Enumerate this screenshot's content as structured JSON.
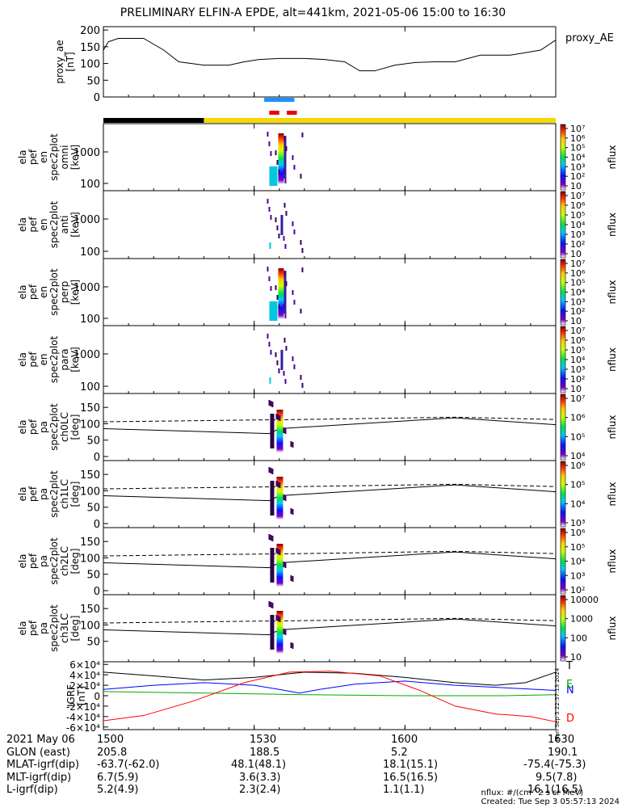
{
  "title": "PRELIMINARY ELFIN-A EPDE, alt=441km, 2021-05-06 15:00 to 16:30",
  "side_label": "Mon Sep  3 22:37:13 2024",
  "chart_data": {
    "type": "line",
    "time_axis": {
      "start_min": 0,
      "end_min": 90,
      "tick_labels": [
        "1500",
        "1530",
        "1600",
        "1630"
      ]
    },
    "panels": [
      {
        "id": "proxy_ae",
        "ylabel": [
          "proxy_ae",
          "[nT]"
        ],
        "legend": "proxy_AE",
        "ylim": [
          0,
          210
        ],
        "yticks": [
          "0",
          "50",
          "100",
          "150",
          "200"
        ],
        "ytick_values": [
          0,
          50,
          100,
          150,
          200
        ],
        "series": [
          {
            "name": "proxy_AE",
            "x": [
              0,
              1,
              3,
              8,
              12,
              15,
              20,
              25,
              28,
              31,
              35,
              40,
              44,
              48,
              51,
              54,
              58,
              62,
              66,
              70,
              75,
              81,
              87,
              90
            ],
            "y": [
              140,
              165,
              175,
              175,
              140,
              105,
              95,
              95,
              105,
              112,
              115,
              115,
              112,
              105,
              78,
              78,
              95,
              103,
              105,
              105,
              125,
              125,
              140,
              170
            ]
          }
        ]
      },
      {
        "id": "spec_omni",
        "ylabel": [
          "ela",
          "pef",
          "en",
          "spec2plot",
          "omni",
          "[keV]"
        ],
        "ytick_labels": [
          "100",
          "1000"
        ],
        "colorbar_label": "nflux",
        "colorbar_ticks": [
          "10",
          "10²",
          "10³",
          "10⁴",
          "10⁵",
          "10⁶",
          "10⁷"
        ]
      },
      {
        "id": "spec_anti",
        "ylabel": [
          "ela",
          "pef",
          "en",
          "spec2plot",
          "anti",
          "[keV]"
        ],
        "ytick_labels": [
          "100",
          "1000"
        ],
        "colorbar_label": "nflux",
        "colorbar_ticks": [
          "10",
          "10²",
          "10³",
          "10⁴",
          "10⁵",
          "10⁶",
          "10⁷"
        ]
      },
      {
        "id": "spec_perp",
        "ylabel": [
          "ela",
          "pef",
          "en",
          "spec2plot",
          "perp",
          "[keV]"
        ],
        "ytick_labels": [
          "100",
          "1000"
        ],
        "colorbar_label": "nflux",
        "colorbar_ticks": [
          "10",
          "10²",
          "10³",
          "10⁴",
          "10⁵",
          "10⁶",
          "10⁷"
        ]
      },
      {
        "id": "spec_para",
        "ylabel": [
          "ela",
          "pef",
          "en",
          "spec2plot",
          "para",
          "[keV]"
        ],
        "ytick_labels": [
          "100",
          "1000"
        ],
        "colorbar_label": "nflux",
        "colorbar_ticks": [
          "10",
          "10²",
          "10³",
          "10⁴",
          "10⁵",
          "10⁶",
          "10⁷"
        ]
      },
      {
        "id": "pa_ch0",
        "ylabel": [
          "ela",
          "pef",
          "pa",
          "spec2plot",
          "ch0LC",
          "[deg]"
        ],
        "ytick_labels": [
          "0",
          "50",
          "100",
          "150"
        ],
        "colorbar_label": "nflux",
        "colorbar_ticks": [
          "10⁴",
          "10⁵",
          "10⁶",
          "10⁷"
        ]
      },
      {
        "id": "pa_ch1",
        "ylabel": [
          "ela",
          "pef",
          "pa",
          "spec2plot",
          "ch1LC",
          "[deg]"
        ],
        "ytick_labels": [
          "0",
          "50",
          "100",
          "150"
        ],
        "colorbar_label": "nflux",
        "colorbar_ticks": [
          "10³",
          "10⁴",
          "10⁵",
          "10⁶"
        ]
      },
      {
        "id": "pa_ch2",
        "ylabel": [
          "ela",
          "pef",
          "pa",
          "spec2plot",
          "ch2LC",
          "[deg]"
        ],
        "ytick_labels": [
          "0",
          "50",
          "100",
          "150"
        ],
        "colorbar_label": "nflux",
        "colorbar_ticks": [
          "10²",
          "10³",
          "10⁴",
          "10⁵",
          "10⁶"
        ]
      },
      {
        "id": "pa_ch3",
        "ylabel": [
          "ela",
          "pef",
          "pa",
          "spec2plot",
          "ch3LC",
          "[deg]"
        ],
        "ytick_labels": [
          "50",
          "100",
          "150"
        ],
        "colorbar_label": "nflux",
        "colorbar_ticks": [
          "10",
          "100",
          "1000",
          "10000"
        ]
      },
      {
        "id": "igrf",
        "ylabel": [
          "IGRF",
          "[nT]"
        ],
        "ytick_labels": [
          "-6×10⁴",
          "-4×10⁴",
          "-2×10⁴",
          "0",
          "2×10⁴",
          "4×10⁴",
          "6×10⁴"
        ],
        "ytick_values": [
          -60000,
          -40000,
          -20000,
          0,
          20000,
          40000,
          60000
        ],
        "legend": [
          "T",
          "E",
          "N",
          "D"
        ],
        "series": [
          {
            "name": "T",
            "color": "#000000",
            "x": [
              0,
              10,
              20,
              30,
              40,
              50,
              60,
              70,
              78,
              84,
              90
            ],
            "y": [
              45000,
              38000,
              30000,
              35000,
              45000,
              43000,
              35000,
              25000,
              20000,
              25000,
              45000
            ]
          },
          {
            "name": "N",
            "color": "#0000ff",
            "x": [
              0,
              10,
              20,
              30,
              35,
              39,
              43,
              50,
              60,
              70,
              80,
              90
            ],
            "y": [
              12000,
              20000,
              25000,
              20000,
              12000,
              5000,
              12000,
              22000,
              28000,
              20000,
              15000,
              10000
            ]
          },
          {
            "name": "E",
            "color": "#00aa00",
            "x": [
              0,
              20,
              40,
              60,
              80,
              90
            ],
            "y": [
              8000,
              5000,
              2000,
              0,
              0,
              2000
            ]
          },
          {
            "name": "D",
            "color": "#ff0000",
            "x": [
              0,
              8,
              18,
              28,
              37,
              45,
              55,
              63,
              70,
              78,
              85,
              90
            ],
            "y": [
              -48000,
              -38000,
              -10000,
              25000,
              45000,
              47000,
              38000,
              10000,
              -20000,
              -35000,
              -40000,
              -50000
            ]
          }
        ]
      }
    ],
    "lc_lines": {
      "solid_deg": [
        85,
        70,
        85,
        118,
        97
      ],
      "dashed_deg": [
        106,
        112,
        112,
        120,
        113
      ],
      "x": [
        0,
        33,
        35,
        70,
        90
      ]
    },
    "indicators": {
      "fgm_blue": [
        32,
        38
      ],
      "red_segments": [
        [
          33,
          35
        ],
        [
          36.5,
          38.5
        ]
      ],
      "black_bar": [
        0,
        20
      ],
      "yellow_bar": [
        20,
        90
      ]
    }
  },
  "footer": {
    "rows": [
      {
        "label": "2021 May 06",
        "values": [
          "1500",
          "1530",
          "1600",
          "1630"
        ]
      },
      {
        "label": "GLON (east)",
        "values": [
          "205.8",
          "188.5",
          "5.2",
          "190.1"
        ]
      },
      {
        "label": "MLAT-igrf(dip)",
        "values": [
          "-63.7(-62.0)",
          "48.1(48.1)",
          "18.1(15.1)",
          "-75.4(-75.3)"
        ]
      },
      {
        "label": "MLT-igrf(dip)",
        "values": [
          "6.7(5.9)",
          "3.6(3.3)",
          "16.5(16.5)",
          "9.5(7.8)"
        ]
      },
      {
        "label": "L-igrf(dip)",
        "values": [
          "5.2(4.9)",
          "2.3(2.4)",
          "1.1(1.1)",
          "16.1(16.5)"
        ]
      }
    ],
    "credits": [
      "nflux: #/(cm^2 s sr MeV)",
      "Created: Tue Sep  3 05:57:13 2024"
    ]
  }
}
